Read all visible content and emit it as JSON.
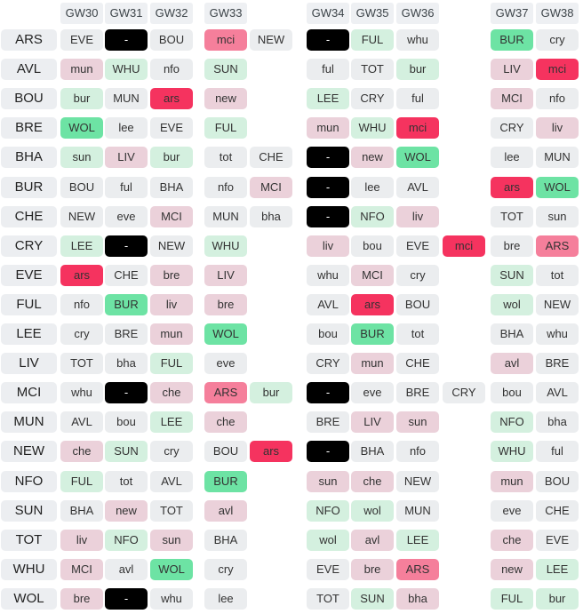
{
  "gameweeks": [
    "GW30",
    "GW31",
    "GW32",
    "GW33",
    "GW34",
    "GW35",
    "GW36",
    "GW37",
    "GW38"
  ],
  "colors": {
    "mid": "#ebedef",
    "hard": "#ebd1da",
    "vhard": "#f57f9b",
    "vvhard": "#f5335f",
    "easy": "#d4f0df",
    "veasy": "#6de3a4",
    "blank": "#000000"
  },
  "rows": [
    {
      "team": "ARS",
      "cells": [
        {
          "t": "EVE",
          "c": "mid"
        },
        {
          "t": "-",
          "c": "blank"
        },
        {
          "t": "BOU",
          "c": "mid"
        },
        {
          "t": "mci",
          "c": "vhard"
        },
        {
          "t": "NEW",
          "c": "mid"
        },
        {
          "t": "-",
          "c": "blank"
        },
        {
          "t": "FUL",
          "c": "easy"
        },
        {
          "t": "whu",
          "c": "mid"
        },
        null,
        {
          "t": "BUR",
          "c": "veasy"
        },
        {
          "t": "cry",
          "c": "mid"
        }
      ]
    },
    {
      "team": "AVL",
      "cells": [
        {
          "t": "mun",
          "c": "hard"
        },
        {
          "t": "WHU",
          "c": "easy"
        },
        {
          "t": "nfo",
          "c": "mid"
        },
        {
          "t": "SUN",
          "c": "easy"
        },
        null,
        {
          "t": "ful",
          "c": "mid"
        },
        {
          "t": "TOT",
          "c": "mid"
        },
        {
          "t": "bur",
          "c": "easy"
        },
        null,
        {
          "t": "LIV",
          "c": "hard"
        },
        {
          "t": "mci",
          "c": "vvhard"
        }
      ]
    },
    {
      "team": "BOU",
      "cells": [
        {
          "t": "bur",
          "c": "easy"
        },
        {
          "t": "MUN",
          "c": "mid"
        },
        {
          "t": "ars",
          "c": "vvhard"
        },
        {
          "t": "new",
          "c": "hard"
        },
        null,
        {
          "t": "LEE",
          "c": "easy"
        },
        {
          "t": "CRY",
          "c": "mid"
        },
        {
          "t": "ful",
          "c": "mid"
        },
        null,
        {
          "t": "MCI",
          "c": "hard"
        },
        {
          "t": "nfo",
          "c": "mid"
        }
      ]
    },
    {
      "team": "BRE",
      "cells": [
        {
          "t": "WOL",
          "c": "veasy"
        },
        {
          "t": "lee",
          "c": "mid"
        },
        {
          "t": "EVE",
          "c": "mid"
        },
        {
          "t": "FUL",
          "c": "easy"
        },
        null,
        {
          "t": "mun",
          "c": "hard"
        },
        {
          "t": "WHU",
          "c": "easy"
        },
        {
          "t": "mci",
          "c": "vvhard"
        },
        null,
        {
          "t": "CRY",
          "c": "mid"
        },
        {
          "t": "liv",
          "c": "hard"
        }
      ]
    },
    {
      "team": "BHA",
      "cells": [
        {
          "t": "sun",
          "c": "easy"
        },
        {
          "t": "LIV",
          "c": "hard"
        },
        {
          "t": "bur",
          "c": "easy"
        },
        {
          "t": "tot",
          "c": "mid"
        },
        {
          "t": "CHE",
          "c": "mid"
        },
        {
          "t": "-",
          "c": "blank"
        },
        {
          "t": "new",
          "c": "hard"
        },
        {
          "t": "WOL",
          "c": "veasy"
        },
        null,
        {
          "t": "lee",
          "c": "mid"
        },
        {
          "t": "MUN",
          "c": "mid"
        }
      ]
    },
    {
      "team": "BUR",
      "cells": [
        {
          "t": "BOU",
          "c": "mid"
        },
        {
          "t": "ful",
          "c": "mid"
        },
        {
          "t": "BHA",
          "c": "mid"
        },
        {
          "t": "nfo",
          "c": "mid"
        },
        {
          "t": "MCI",
          "c": "hard"
        },
        {
          "t": "-",
          "c": "blank"
        },
        {
          "t": "lee",
          "c": "mid"
        },
        {
          "t": "AVL",
          "c": "mid"
        },
        null,
        {
          "t": "ars",
          "c": "vvhard"
        },
        {
          "t": "WOL",
          "c": "veasy"
        }
      ]
    },
    {
      "team": "CHE",
      "cells": [
        {
          "t": "NEW",
          "c": "mid"
        },
        {
          "t": "eve",
          "c": "mid"
        },
        {
          "t": "MCI",
          "c": "hard"
        },
        {
          "t": "MUN",
          "c": "mid"
        },
        {
          "t": "bha",
          "c": "mid"
        },
        {
          "t": "-",
          "c": "blank"
        },
        {
          "t": "NFO",
          "c": "easy"
        },
        {
          "t": "liv",
          "c": "hard"
        },
        null,
        {
          "t": "TOT",
          "c": "mid"
        },
        {
          "t": "sun",
          "c": "mid"
        }
      ]
    },
    {
      "team": "CRY",
      "cells": [
        {
          "t": "LEE",
          "c": "easy"
        },
        {
          "t": "-",
          "c": "blank"
        },
        {
          "t": "NEW",
          "c": "mid"
        },
        {
          "t": "WHU",
          "c": "easy"
        },
        null,
        {
          "t": "liv",
          "c": "hard"
        },
        {
          "t": "bou",
          "c": "mid"
        },
        {
          "t": "EVE",
          "c": "mid"
        },
        {
          "t": "mci",
          "c": "vvhard"
        },
        {
          "t": "bre",
          "c": "mid"
        },
        {
          "t": "ARS",
          "c": "vhard"
        }
      ]
    },
    {
      "team": "EVE",
      "cells": [
        {
          "t": "ars",
          "c": "vvhard"
        },
        {
          "t": "CHE",
          "c": "mid"
        },
        {
          "t": "bre",
          "c": "hard"
        },
        {
          "t": "LIV",
          "c": "hard"
        },
        null,
        {
          "t": "whu",
          "c": "mid"
        },
        {
          "t": "MCI",
          "c": "hard"
        },
        {
          "t": "cry",
          "c": "mid"
        },
        null,
        {
          "t": "SUN",
          "c": "easy"
        },
        {
          "t": "tot",
          "c": "mid"
        }
      ]
    },
    {
      "team": "FUL",
      "cells": [
        {
          "t": "nfo",
          "c": "mid"
        },
        {
          "t": "BUR",
          "c": "veasy"
        },
        {
          "t": "liv",
          "c": "hard"
        },
        {
          "t": "bre",
          "c": "hard"
        },
        null,
        {
          "t": "AVL",
          "c": "mid"
        },
        {
          "t": "ars",
          "c": "vvhard"
        },
        {
          "t": "BOU",
          "c": "mid"
        },
        null,
        {
          "t": "wol",
          "c": "easy"
        },
        {
          "t": "NEW",
          "c": "mid"
        }
      ]
    },
    {
      "team": "LEE",
      "cells": [
        {
          "t": "cry",
          "c": "mid"
        },
        {
          "t": "BRE",
          "c": "mid"
        },
        {
          "t": "mun",
          "c": "hard"
        },
        {
          "t": "WOL",
          "c": "veasy"
        },
        null,
        {
          "t": "bou",
          "c": "mid"
        },
        {
          "t": "BUR",
          "c": "veasy"
        },
        {
          "t": "tot",
          "c": "mid"
        },
        null,
        {
          "t": "BHA",
          "c": "mid"
        },
        {
          "t": "whu",
          "c": "mid"
        }
      ]
    },
    {
      "team": "LIV",
      "cells": [
        {
          "t": "TOT",
          "c": "mid"
        },
        {
          "t": "bha",
          "c": "mid"
        },
        {
          "t": "FUL",
          "c": "easy"
        },
        {
          "t": "eve",
          "c": "mid"
        },
        null,
        {
          "t": "CRY",
          "c": "mid"
        },
        {
          "t": "mun",
          "c": "hard"
        },
        {
          "t": "CHE",
          "c": "mid"
        },
        null,
        {
          "t": "avl",
          "c": "hard"
        },
        {
          "t": "BRE",
          "c": "mid"
        }
      ]
    },
    {
      "team": "MCI",
      "cells": [
        {
          "t": "whu",
          "c": "mid"
        },
        {
          "t": "-",
          "c": "blank"
        },
        {
          "t": "che",
          "c": "hard"
        },
        {
          "t": "ARS",
          "c": "vhard"
        },
        {
          "t": "bur",
          "c": "easy"
        },
        {
          "t": "-",
          "c": "blank"
        },
        {
          "t": "eve",
          "c": "mid"
        },
        {
          "t": "BRE",
          "c": "mid"
        },
        {
          "t": "CRY",
          "c": "mid"
        },
        {
          "t": "bou",
          "c": "mid"
        },
        {
          "t": "AVL",
          "c": "mid"
        }
      ]
    },
    {
      "team": "MUN",
      "cells": [
        {
          "t": "AVL",
          "c": "mid"
        },
        {
          "t": "bou",
          "c": "mid"
        },
        {
          "t": "LEE",
          "c": "easy"
        },
        {
          "t": "che",
          "c": "hard"
        },
        null,
        {
          "t": "BRE",
          "c": "mid"
        },
        {
          "t": "LIV",
          "c": "hard"
        },
        {
          "t": "sun",
          "c": "hard"
        },
        null,
        {
          "t": "NFO",
          "c": "easy"
        },
        {
          "t": "bha",
          "c": "mid"
        }
      ]
    },
    {
      "team": "NEW",
      "cells": [
        {
          "t": "che",
          "c": "hard"
        },
        {
          "t": "SUN",
          "c": "easy"
        },
        {
          "t": "cry",
          "c": "mid"
        },
        {
          "t": "BOU",
          "c": "mid"
        },
        {
          "t": "ars",
          "c": "vvhard"
        },
        {
          "t": "-",
          "c": "blank"
        },
        {
          "t": "BHA",
          "c": "mid"
        },
        {
          "t": "nfo",
          "c": "mid"
        },
        null,
        {
          "t": "WHU",
          "c": "easy"
        },
        {
          "t": "ful",
          "c": "mid"
        }
      ]
    },
    {
      "team": "NFO",
      "cells": [
        {
          "t": "FUL",
          "c": "easy"
        },
        {
          "t": "tot",
          "c": "mid"
        },
        {
          "t": "AVL",
          "c": "mid"
        },
        {
          "t": "BUR",
          "c": "veasy"
        },
        null,
        {
          "t": "sun",
          "c": "hard"
        },
        {
          "t": "che",
          "c": "hard"
        },
        {
          "t": "NEW",
          "c": "mid"
        },
        null,
        {
          "t": "mun",
          "c": "hard"
        },
        {
          "t": "BOU",
          "c": "mid"
        }
      ]
    },
    {
      "team": "SUN",
      "cells": [
        {
          "t": "BHA",
          "c": "mid"
        },
        {
          "t": "new",
          "c": "hard"
        },
        {
          "t": "TOT",
          "c": "mid"
        },
        {
          "t": "avl",
          "c": "hard"
        },
        null,
        {
          "t": "NFO",
          "c": "easy"
        },
        {
          "t": "wol",
          "c": "easy"
        },
        {
          "t": "MUN",
          "c": "mid"
        },
        null,
        {
          "t": "eve",
          "c": "mid"
        },
        {
          "t": "CHE",
          "c": "mid"
        }
      ]
    },
    {
      "team": "TOT",
      "cells": [
        {
          "t": "liv",
          "c": "hard"
        },
        {
          "t": "NFO",
          "c": "easy"
        },
        {
          "t": "sun",
          "c": "hard"
        },
        {
          "t": "BHA",
          "c": "mid"
        },
        null,
        {
          "t": "wol",
          "c": "easy"
        },
        {
          "t": "avl",
          "c": "hard"
        },
        {
          "t": "LEE",
          "c": "easy"
        },
        null,
        {
          "t": "che",
          "c": "hard"
        },
        {
          "t": "EVE",
          "c": "mid"
        }
      ]
    },
    {
      "team": "WHU",
      "cells": [
        {
          "t": "MCI",
          "c": "hard"
        },
        {
          "t": "avl",
          "c": "mid"
        },
        {
          "t": "WOL",
          "c": "veasy"
        },
        {
          "t": "cry",
          "c": "mid"
        },
        null,
        {
          "t": "EVE",
          "c": "mid"
        },
        {
          "t": "bre",
          "c": "hard"
        },
        {
          "t": "ARS",
          "c": "vhard"
        },
        null,
        {
          "t": "new",
          "c": "hard"
        },
        {
          "t": "LEE",
          "c": "easy"
        }
      ]
    },
    {
      "team": "WOL",
      "cells": [
        {
          "t": "bre",
          "c": "hard"
        },
        {
          "t": "-",
          "c": "blank"
        },
        {
          "t": "whu",
          "c": "mid"
        },
        {
          "t": "lee",
          "c": "mid"
        },
        null,
        {
          "t": "TOT",
          "c": "mid"
        },
        {
          "t": "SUN",
          "c": "easy"
        },
        {
          "t": "bha",
          "c": "hard"
        },
        null,
        {
          "t": "FUL",
          "c": "easy"
        },
        {
          "t": "bur",
          "c": "easy"
        }
      ]
    }
  ]
}
